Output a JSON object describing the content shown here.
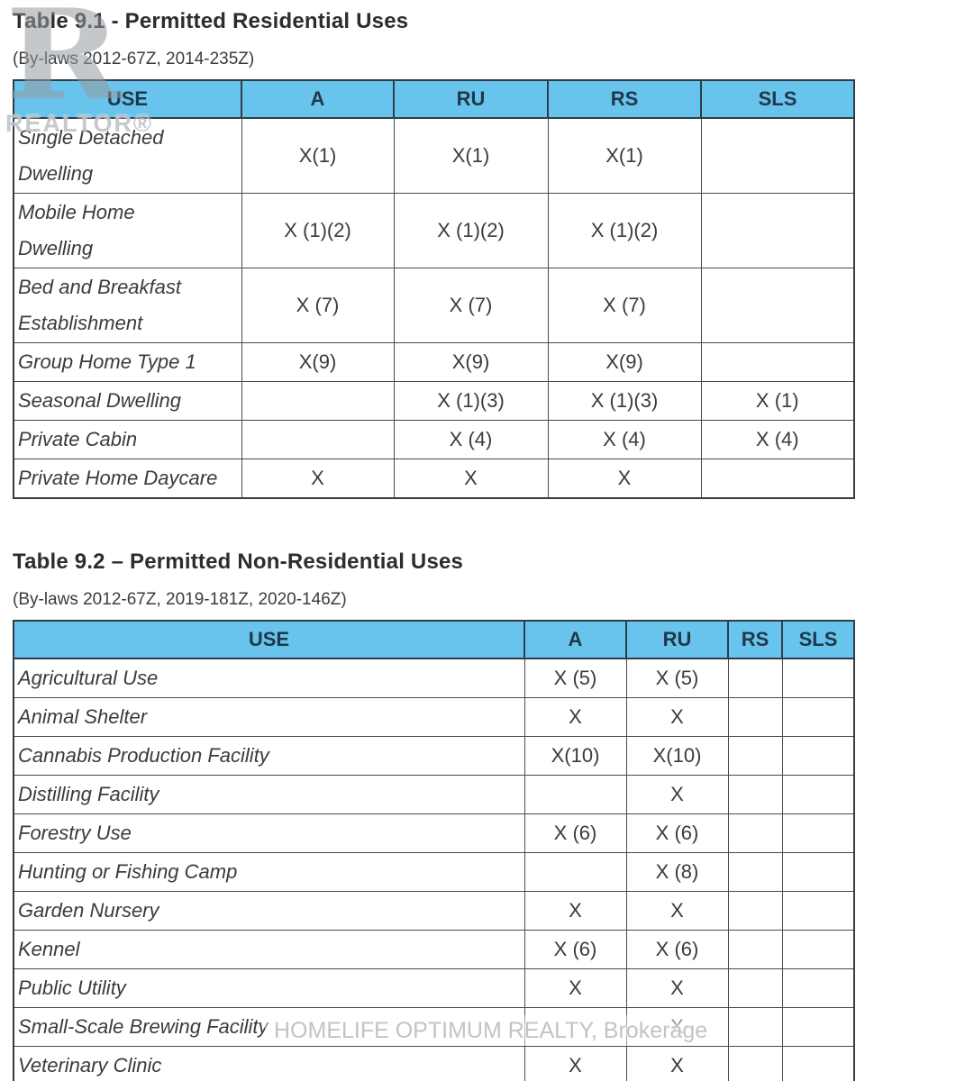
{
  "watermarks": {
    "realtor_logo_letter": "R",
    "realtor_text": "REALTOR®",
    "brokerage_text": "HOMELIFE OPTIMUM REALTY, Brokerage"
  },
  "colors": {
    "header_bg": "#68c4ec",
    "header_text": "#20384a",
    "border": "#4a4a4a",
    "body_text": "#3b3b3b"
  },
  "tables": [
    {
      "title": "Table 9.1 - Permitted Residential Uses",
      "bylaws": "(By-laws 2012-67Z, 2014-235Z)",
      "columns": [
        "USE",
        "A",
        "RU",
        "RS",
        "SLS"
      ],
      "rows": [
        {
          "use": "Single Detached\nDwelling",
          "values": [
            "X(1)",
            "X(1)",
            "X(1)",
            ""
          ]
        },
        {
          "use": "Mobile Home\nDwelling",
          "values": [
            "X (1)(2)",
            "X (1)(2)",
            "X (1)(2)",
            ""
          ]
        },
        {
          "use": "Bed and Breakfast\nEstablishment",
          "values": [
            "X (7)",
            "X (7)",
            "X (7)",
            ""
          ]
        },
        {
          "use": "Group Home Type 1",
          "values": [
            "X(9)",
            "X(9)",
            "X(9)",
            ""
          ]
        },
        {
          "use": "Seasonal Dwelling",
          "values": [
            "",
            "X (1)(3)",
            "X (1)(3)",
            "X (1)"
          ]
        },
        {
          "use": "Private Cabin",
          "values": [
            "",
            "X (4)",
            "X (4)",
            "X (4)"
          ]
        },
        {
          "use": "Private Home Daycare",
          "values": [
            "X",
            "X",
            "X",
            ""
          ]
        }
      ]
    },
    {
      "title": "Table 9.2 – Permitted Non-Residential Uses",
      "bylaws": "(By-laws 2012-67Z, 2019-181Z, 2020-146Z)",
      "columns": [
        "USE",
        "A",
        "RU",
        "RS",
        "SLS"
      ],
      "rows": [
        {
          "use": "Agricultural Use",
          "values": [
            "X (5)",
            "X (5)",
            "",
            ""
          ]
        },
        {
          "use": "Animal Shelter",
          "values": [
            "X",
            "X",
            "",
            ""
          ]
        },
        {
          "use": "Cannabis Production Facility",
          "values": [
            "X(10)",
            "X(10)",
            "",
            ""
          ]
        },
        {
          "use": "Distilling Facility",
          "values": [
            "",
            "X",
            "",
            ""
          ]
        },
        {
          "use": "Forestry Use",
          "values": [
            "X (6)",
            "X (6)",
            "",
            ""
          ]
        },
        {
          "use": "Hunting or Fishing Camp",
          "values": [
            "",
            "X (8)",
            "",
            ""
          ]
        },
        {
          "use": "Garden Nursery",
          "values": [
            "X",
            "X",
            "",
            ""
          ]
        },
        {
          "use": "Kennel",
          "values": [
            "X (6)",
            "X (6)",
            "",
            ""
          ]
        },
        {
          "use": "Public Utility",
          "values": [
            "X",
            "X",
            "",
            ""
          ]
        },
        {
          "use": "Small-Scale Brewing Facility",
          "values": [
            "",
            "X",
            "",
            ""
          ]
        },
        {
          "use": "Veterinary Clinic",
          "values": [
            "X",
            "X",
            "",
            ""
          ]
        }
      ]
    }
  ]
}
